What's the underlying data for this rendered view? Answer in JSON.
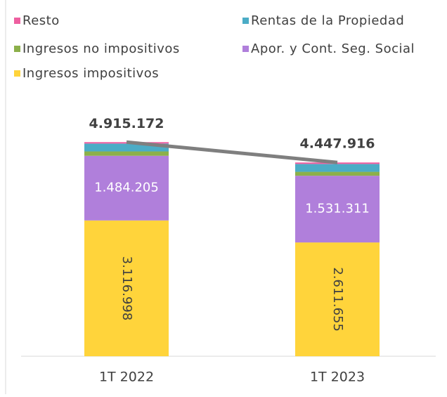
{
  "chart_data": {
    "type": "stacked-bar",
    "categories": [
      "1T 2022",
      "1T 2023"
    ],
    "series": [
      {
        "name": "Ingresos impositivos",
        "color": "#ffd43b",
        "values": [
          3116998,
          2611655
        ],
        "value_labels": [
          "3.116.998",
          "2.611.655"
        ]
      },
      {
        "name": "Apor. y Cont. Seg. Social",
        "color": "#b07fdb",
        "values": [
          1484205,
          1531311
        ],
        "value_labels": [
          "1.484.205",
          "1.531.311"
        ]
      },
      {
        "name": "Ingresos no impositivos",
        "color": "#8cb04a",
        "values": [
          100000,
          90000
        ]
      },
      {
        "name": "Rentas de la Propiedad",
        "color": "#4bacc6",
        "values": [
          180000,
          180000
        ]
      },
      {
        "name": "Resto",
        "color": "#ee5fa0",
        "values": [
          34000,
          35000
        ]
      }
    ],
    "totals": {
      "color": "#7f7f7f",
      "values": [
        4915172,
        4447916
      ],
      "value_labels": [
        "4.915.172",
        "4.447.916"
      ]
    },
    "ylim": [
      0,
      5000000
    ],
    "legend": "top"
  }
}
